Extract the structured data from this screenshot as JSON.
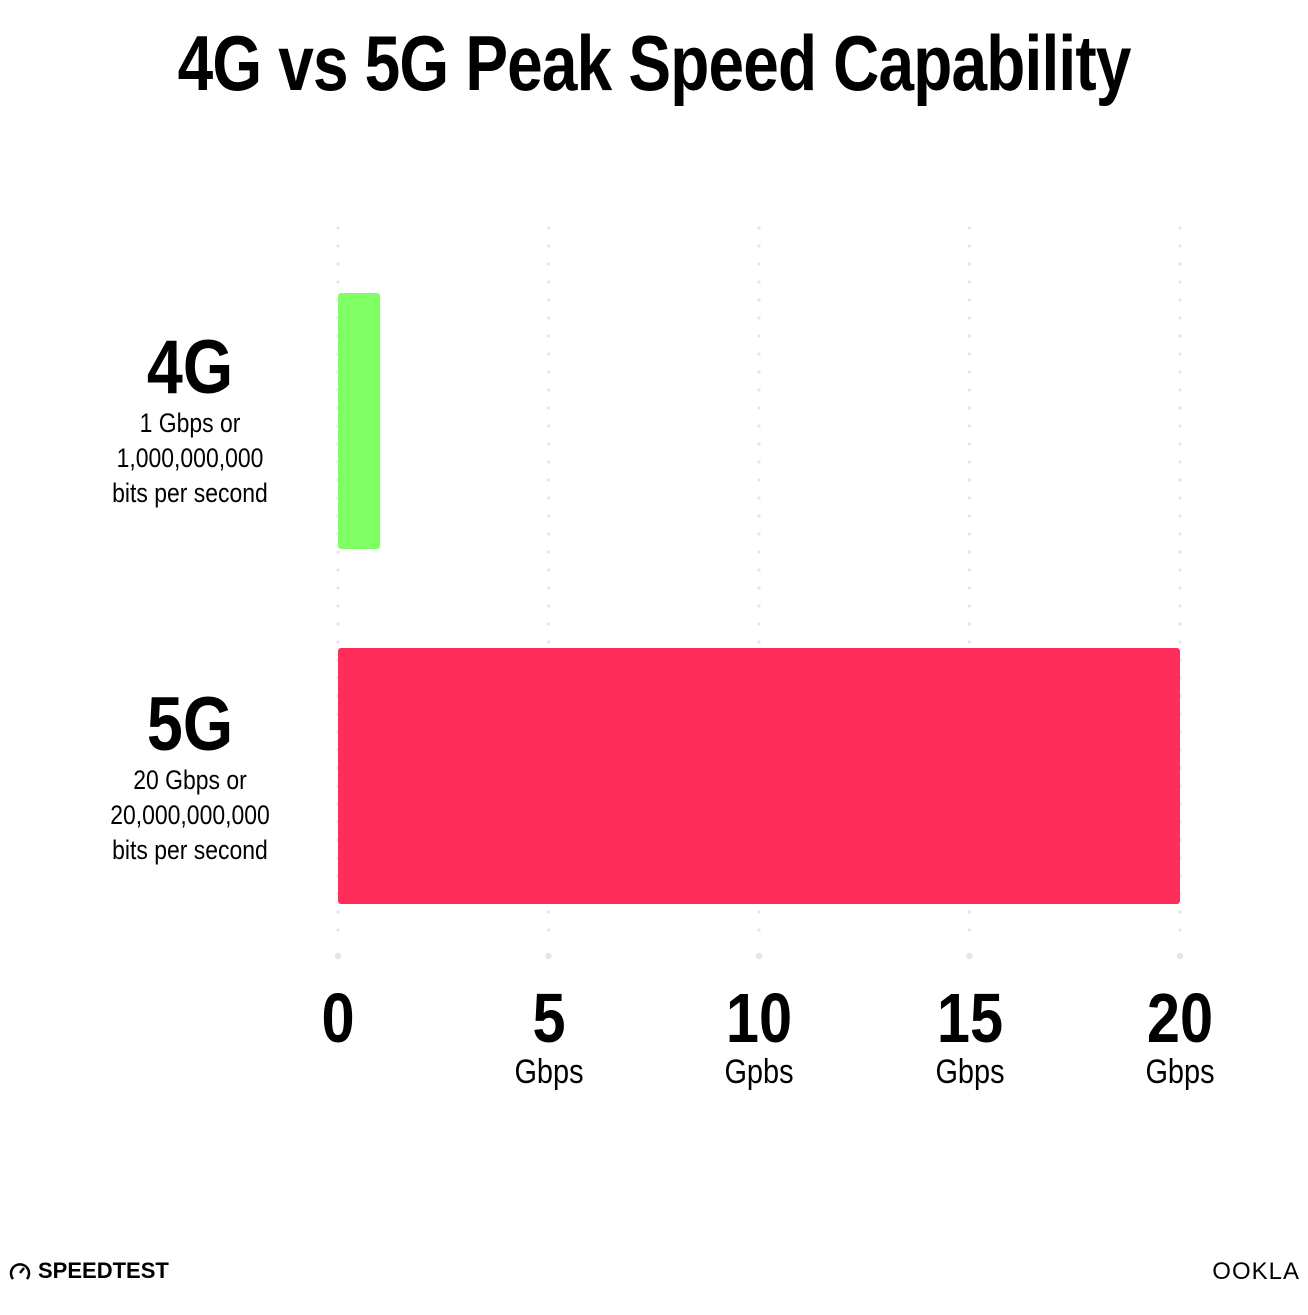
{
  "chart_data": {
    "type": "bar",
    "orientation": "horizontal",
    "title": "4G vs 5G Peak Speed Capability",
    "categories": [
      {
        "label": "4G",
        "description": [
          "1 Gbps or",
          "1,000,000,000",
          "bits per second"
        ]
      },
      {
        "label": "5G",
        "description": [
          "20 Gbps or",
          "20,000,000,000",
          "bits per second"
        ]
      }
    ],
    "values": [
      1,
      20
    ],
    "colors": [
      "#7fff63",
      "#ff2d5a"
    ],
    "xlim": [
      0,
      20
    ],
    "ticks": [
      {
        "value": 0,
        "label": "0",
        "unit": ""
      },
      {
        "value": 5,
        "label": "5",
        "unit": "Gbps"
      },
      {
        "value": 10,
        "label": "10",
        "unit": "Gpbs"
      },
      {
        "value": 15,
        "label": "15",
        "unit": "Gbps"
      },
      {
        "value": 20,
        "label": "20",
        "unit": "Gbps"
      }
    ],
    "grid": true,
    "grid_color": "#e3e4f0"
  },
  "branding": {
    "left": "SPEEDTEST",
    "right": "OOKLA"
  }
}
